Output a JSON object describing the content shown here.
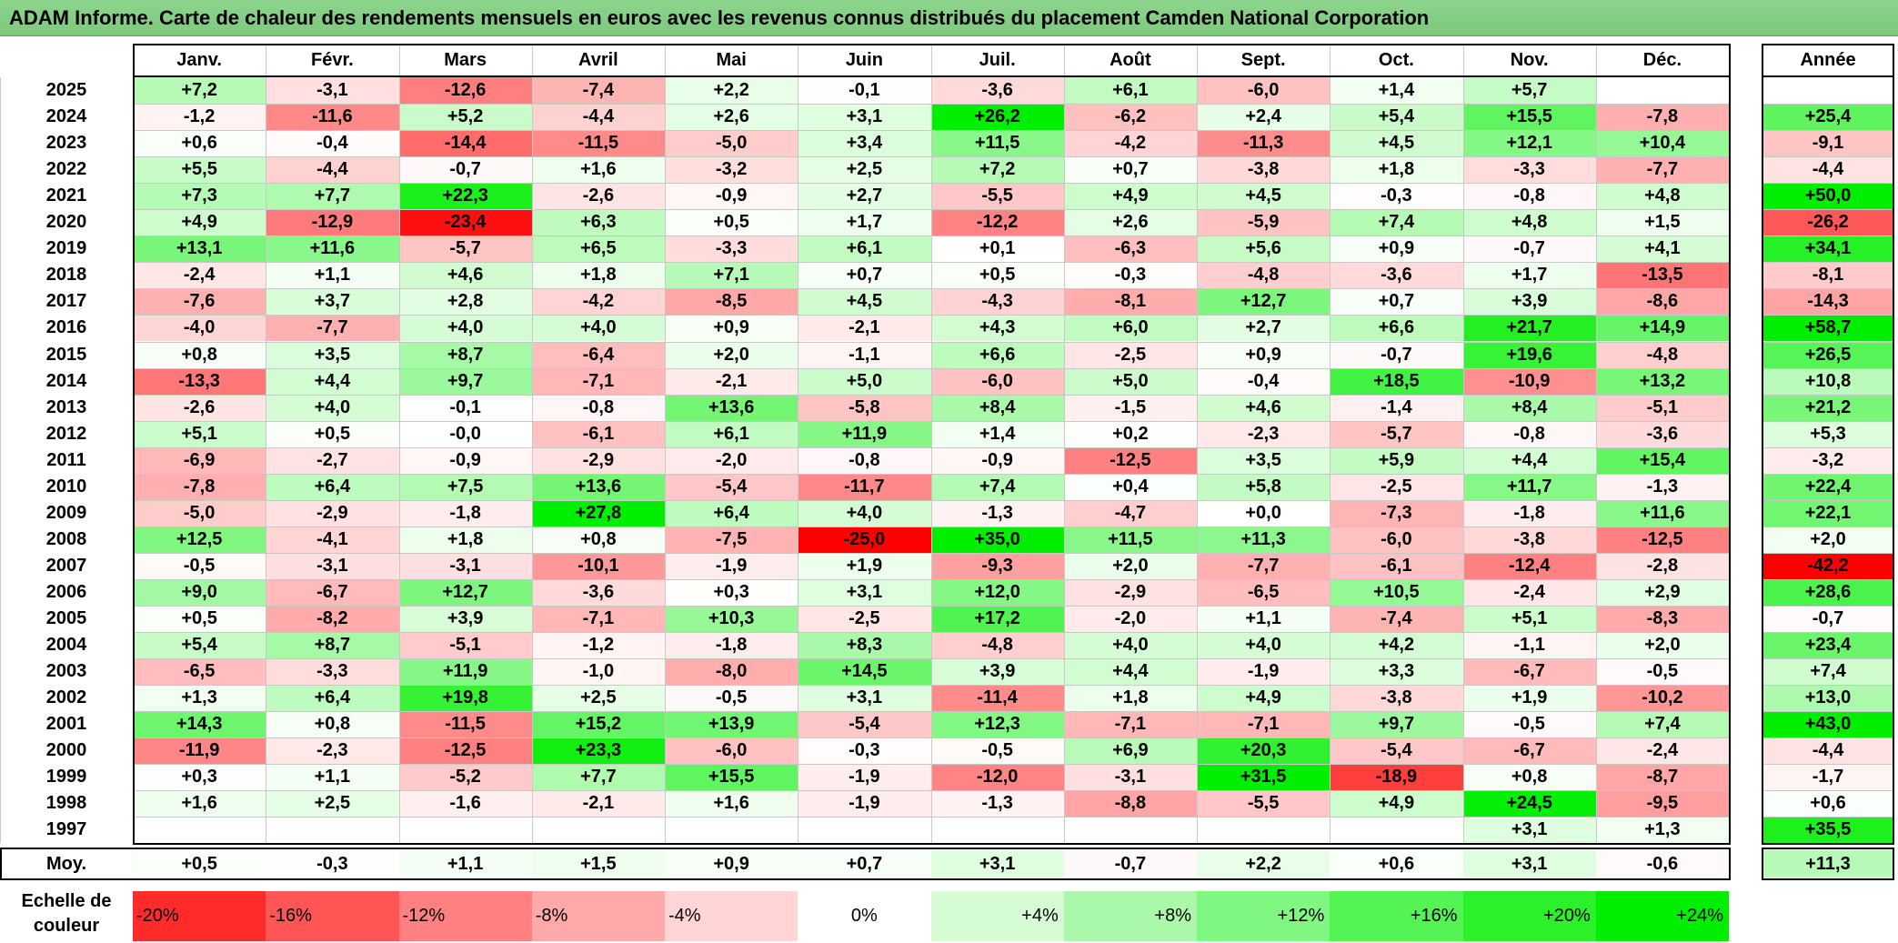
{
  "title": "ADAM Informe. Carte de chaleur des rendements mensuels en euros avec les revenus connus distribués du placement Camden National Corporation",
  "chart_data": {
    "type": "heatmap",
    "title": "ADAM Informe. Carte de chaleur des rendements mensuels en euros avec les revenus connus distribués du placement Camden National Corporation",
    "months": [
      "Janv.",
      "Févr.",
      "Mars",
      "Avril",
      "Mai",
      "Juin",
      "Juil.",
      "Août",
      "Sept.",
      "Oct.",
      "Nov.",
      "Déc."
    ],
    "year_header": "Année",
    "rows": [
      {
        "year": "2025",
        "values": [
          "+7,2",
          "-3,1",
          "-12,6",
          "-7,4",
          "+2,2",
          "-0,1",
          "-3,6",
          "+6,1",
          "-6,0",
          "+1,4",
          "+5,7",
          ""
        ],
        "annual": ""
      },
      {
        "year": "2024",
        "values": [
          "-1,2",
          "-11,6",
          "+5,2",
          "-4,4",
          "+2,6",
          "+3,1",
          "+26,2",
          "-6,2",
          "+2,4",
          "+5,4",
          "+15,5",
          "-7,8"
        ],
        "annual": "+25,4"
      },
      {
        "year": "2023",
        "values": [
          "+0,6",
          "-0,4",
          "-14,4",
          "-11,5",
          "-5,0",
          "+3,4",
          "+11,5",
          "-4,2",
          "-11,3",
          "+4,5",
          "+12,1",
          "+10,4"
        ],
        "annual": "-9,1"
      },
      {
        "year": "2022",
        "values": [
          "+5,5",
          "-4,4",
          "-0,7",
          "+1,6",
          "-3,2",
          "+2,5",
          "+7,2",
          "+0,7",
          "-3,8",
          "+1,8",
          "-3,3",
          "-7,7"
        ],
        "annual": "-4,4"
      },
      {
        "year": "2021",
        "values": [
          "+7,3",
          "+7,7",
          "+22,3",
          "-2,6",
          "-0,9",
          "+2,7",
          "-5,5",
          "+4,9",
          "+4,5",
          "-0,3",
          "-0,8",
          "+4,8"
        ],
        "annual": "+50,0"
      },
      {
        "year": "2020",
        "values": [
          "+4,9",
          "-12,9",
          "-23,4",
          "+6,3",
          "+0,5",
          "+1,7",
          "-12,2",
          "+2,6",
          "-5,9",
          "+7,4",
          "+4,8",
          "+1,5"
        ],
        "annual": "-26,2"
      },
      {
        "year": "2019",
        "values": [
          "+13,1",
          "+11,6",
          "-5,7",
          "+6,5",
          "-3,3",
          "+6,1",
          "+0,1",
          "-6,3",
          "+5,6",
          "+0,9",
          "-0,7",
          "+4,1"
        ],
        "annual": "+34,1"
      },
      {
        "year": "2018",
        "values": [
          "-2,4",
          "+1,1",
          "+4,6",
          "+1,8",
          "+7,1",
          "+0,7",
          "+0,5",
          "-0,3",
          "-4,8",
          "-3,6",
          "+1,7",
          "-13,5"
        ],
        "annual": "-8,1"
      },
      {
        "year": "2017",
        "values": [
          "-7,6",
          "+3,7",
          "+2,8",
          "-4,2",
          "-8,5",
          "+4,5",
          "-4,3",
          "-8,1",
          "+12,7",
          "+0,7",
          "+3,9",
          "-8,6"
        ],
        "annual": "-14,3"
      },
      {
        "year": "2016",
        "values": [
          "-4,0",
          "-7,7",
          "+4,0",
          "+4,0",
          "+0,9",
          "-2,1",
          "+4,3",
          "+6,0",
          "+2,7",
          "+6,6",
          "+21,7",
          "+14,9"
        ],
        "annual": "+58,7"
      },
      {
        "year": "2015",
        "values": [
          "+0,8",
          "+3,5",
          "+8,7",
          "-6,4",
          "+2,0",
          "-1,1",
          "+6,6",
          "-2,5",
          "+0,9",
          "-0,7",
          "+19,6",
          "-4,8"
        ],
        "annual": "+26,5"
      },
      {
        "year": "2014",
        "values": [
          "-13,3",
          "+4,4",
          "+9,7",
          "-7,1",
          "-2,1",
          "+5,0",
          "-6,0",
          "+5,0",
          "-0,4",
          "+18,5",
          "-10,9",
          "+13,2"
        ],
        "annual": "+10,8"
      },
      {
        "year": "2013",
        "values": [
          "-2,6",
          "+4,0",
          "-0,1",
          "-0,8",
          "+13,6",
          "-5,8",
          "+8,4",
          "-1,5",
          "+4,6",
          "-1,4",
          "+8,4",
          "-5,1"
        ],
        "annual": "+21,2"
      },
      {
        "year": "2012",
        "values": [
          "+5,1",
          "+0,5",
          "-0,0",
          "-6,1",
          "+6,1",
          "+11,9",
          "+1,4",
          "+0,2",
          "-2,3",
          "-5,7",
          "-0,8",
          "-3,6"
        ],
        "annual": "+5,3"
      },
      {
        "year": "2011",
        "values": [
          "-6,9",
          "-2,7",
          "-0,9",
          "-2,9",
          "-2,0",
          "-0,8",
          "-0,9",
          "-12,5",
          "+3,5",
          "+5,9",
          "+4,4",
          "+15,4"
        ],
        "annual": "-3,2"
      },
      {
        "year": "2010",
        "values": [
          "-7,8",
          "+6,4",
          "+7,5",
          "+13,6",
          "-5,4",
          "-11,7",
          "+7,4",
          "+0,4",
          "+5,8",
          "-2,5",
          "+11,7",
          "-1,3"
        ],
        "annual": "+22,4"
      },
      {
        "year": "2009",
        "values": [
          "-5,0",
          "-2,9",
          "-1,8",
          "+27,8",
          "+6,4",
          "+4,0",
          "-1,3",
          "-4,7",
          "+0,0",
          "-7,3",
          "-1,8",
          "+11,6"
        ],
        "annual": "+22,1"
      },
      {
        "year": "2008",
        "values": [
          "+12,5",
          "-4,1",
          "+1,8",
          "+0,8",
          "-7,5",
          "-25,0",
          "+35,0",
          "+11,5",
          "+11,3",
          "-6,0",
          "-3,8",
          "-12,5"
        ],
        "annual": "+2,0"
      },
      {
        "year": "2007",
        "values": [
          "-0,5",
          "-3,1",
          "-3,1",
          "-10,1",
          "-1,9",
          "+1,9",
          "-9,3",
          "+2,0",
          "-7,7",
          "-6,1",
          "-12,4",
          "-2,8"
        ],
        "annual": "-42,2"
      },
      {
        "year": "2006",
        "values": [
          "+9,0",
          "-6,7",
          "+12,7",
          "-3,6",
          "+0,3",
          "+3,1",
          "+12,0",
          "-2,9",
          "-6,5",
          "+10,5",
          "-2,4",
          "+2,9"
        ],
        "annual": "+28,6"
      },
      {
        "year": "2005",
        "values": [
          "+0,5",
          "-8,2",
          "+3,9",
          "-7,1",
          "+10,3",
          "-2,5",
          "+17,2",
          "-2,0",
          "+1,1",
          "-7,4",
          "+5,1",
          "-8,3"
        ],
        "annual": "-0,7"
      },
      {
        "year": "2004",
        "values": [
          "+5,4",
          "+8,7",
          "-5,1",
          "-1,2",
          "-1,8",
          "+8,3",
          "-4,8",
          "+4,0",
          "+4,0",
          "+4,2",
          "-1,1",
          "+2,0"
        ],
        "annual": "+23,4"
      },
      {
        "year": "2003",
        "values": [
          "-6,5",
          "-3,3",
          "+11,9",
          "-1,0",
          "-8,0",
          "+14,5",
          "+3,9",
          "+4,4",
          "-1,9",
          "+3,3",
          "-6,7",
          "-0,5"
        ],
        "annual": "+7,4"
      },
      {
        "year": "2002",
        "values": [
          "+1,3",
          "+6,4",
          "+19,8",
          "+2,5",
          "-0,5",
          "+3,1",
          "-11,4",
          "+1,8",
          "+4,9",
          "-3,8",
          "+1,9",
          "-10,2"
        ],
        "annual": "+13,0"
      },
      {
        "year": "2001",
        "values": [
          "+14,3",
          "+0,8",
          "-11,5",
          "+15,2",
          "+13,9",
          "-5,4",
          "+12,3",
          "-7,1",
          "-7,1",
          "+9,7",
          "-0,5",
          "+7,4"
        ],
        "annual": "+43,0"
      },
      {
        "year": "2000",
        "values": [
          "-11,9",
          "-2,3",
          "-12,5",
          "+23,3",
          "-6,0",
          "-0,3",
          "-0,5",
          "+6,9",
          "+20,3",
          "-5,4",
          "-6,7",
          "-2,4"
        ],
        "annual": "-4,4"
      },
      {
        "year": "1999",
        "values": [
          "+0,3",
          "+1,1",
          "-5,2",
          "+7,7",
          "+15,5",
          "-1,9",
          "-12,0",
          "-3,1",
          "+31,5",
          "-18,9",
          "+0,8",
          "-8,7"
        ],
        "annual": "-1,7"
      },
      {
        "year": "1998",
        "values": [
          "+1,6",
          "+2,5",
          "-1,6",
          "-2,1",
          "+1,6",
          "-1,9",
          "-1,3",
          "-8,8",
          "-5,5",
          "+4,9",
          "+24,5",
          "-9,5"
        ],
        "annual": "+0,6"
      },
      {
        "year": "1997",
        "values": [
          "",
          "",
          "",
          "",
          "",
          "",
          "",
          "",
          "",
          "",
          "+3,1",
          "+1,3"
        ],
        "annual": "+35,5"
      }
    ],
    "average": {
      "label": "Moy.",
      "values": [
        "+0,5",
        "-0,3",
        "+1,1",
        "+1,5",
        "+0,9",
        "+0,7",
        "+3,1",
        "-0,7",
        "+2,2",
        "+0,6",
        "+3,1",
        "-0,6"
      ],
      "annual": "+11,3"
    },
    "scale": {
      "label_line1": "Echelle de",
      "label_line2": "couleur",
      "steps": [
        {
          "label": "-20%",
          "value": -20
        },
        {
          "label": "-16%",
          "value": -16
        },
        {
          "label": "-12%",
          "value": -12
        },
        {
          "label": "-8%",
          "value": -8
        },
        {
          "label": "-4%",
          "value": -4
        },
        {
          "label": "0%",
          "value": 0
        },
        {
          "label": "+4%",
          "value": 4
        },
        {
          "label": "+8%",
          "value": 8
        },
        {
          "label": "+12%",
          "value": 12
        },
        {
          "label": "+16%",
          "value": 16
        },
        {
          "label": "+20%",
          "value": 20
        },
        {
          "label": "+24%",
          "value": 24
        }
      ]
    },
    "colors": {
      "negative_max": "#ff0000",
      "neutral": "#ffffff",
      "positive_max": "#00ee00"
    }
  }
}
